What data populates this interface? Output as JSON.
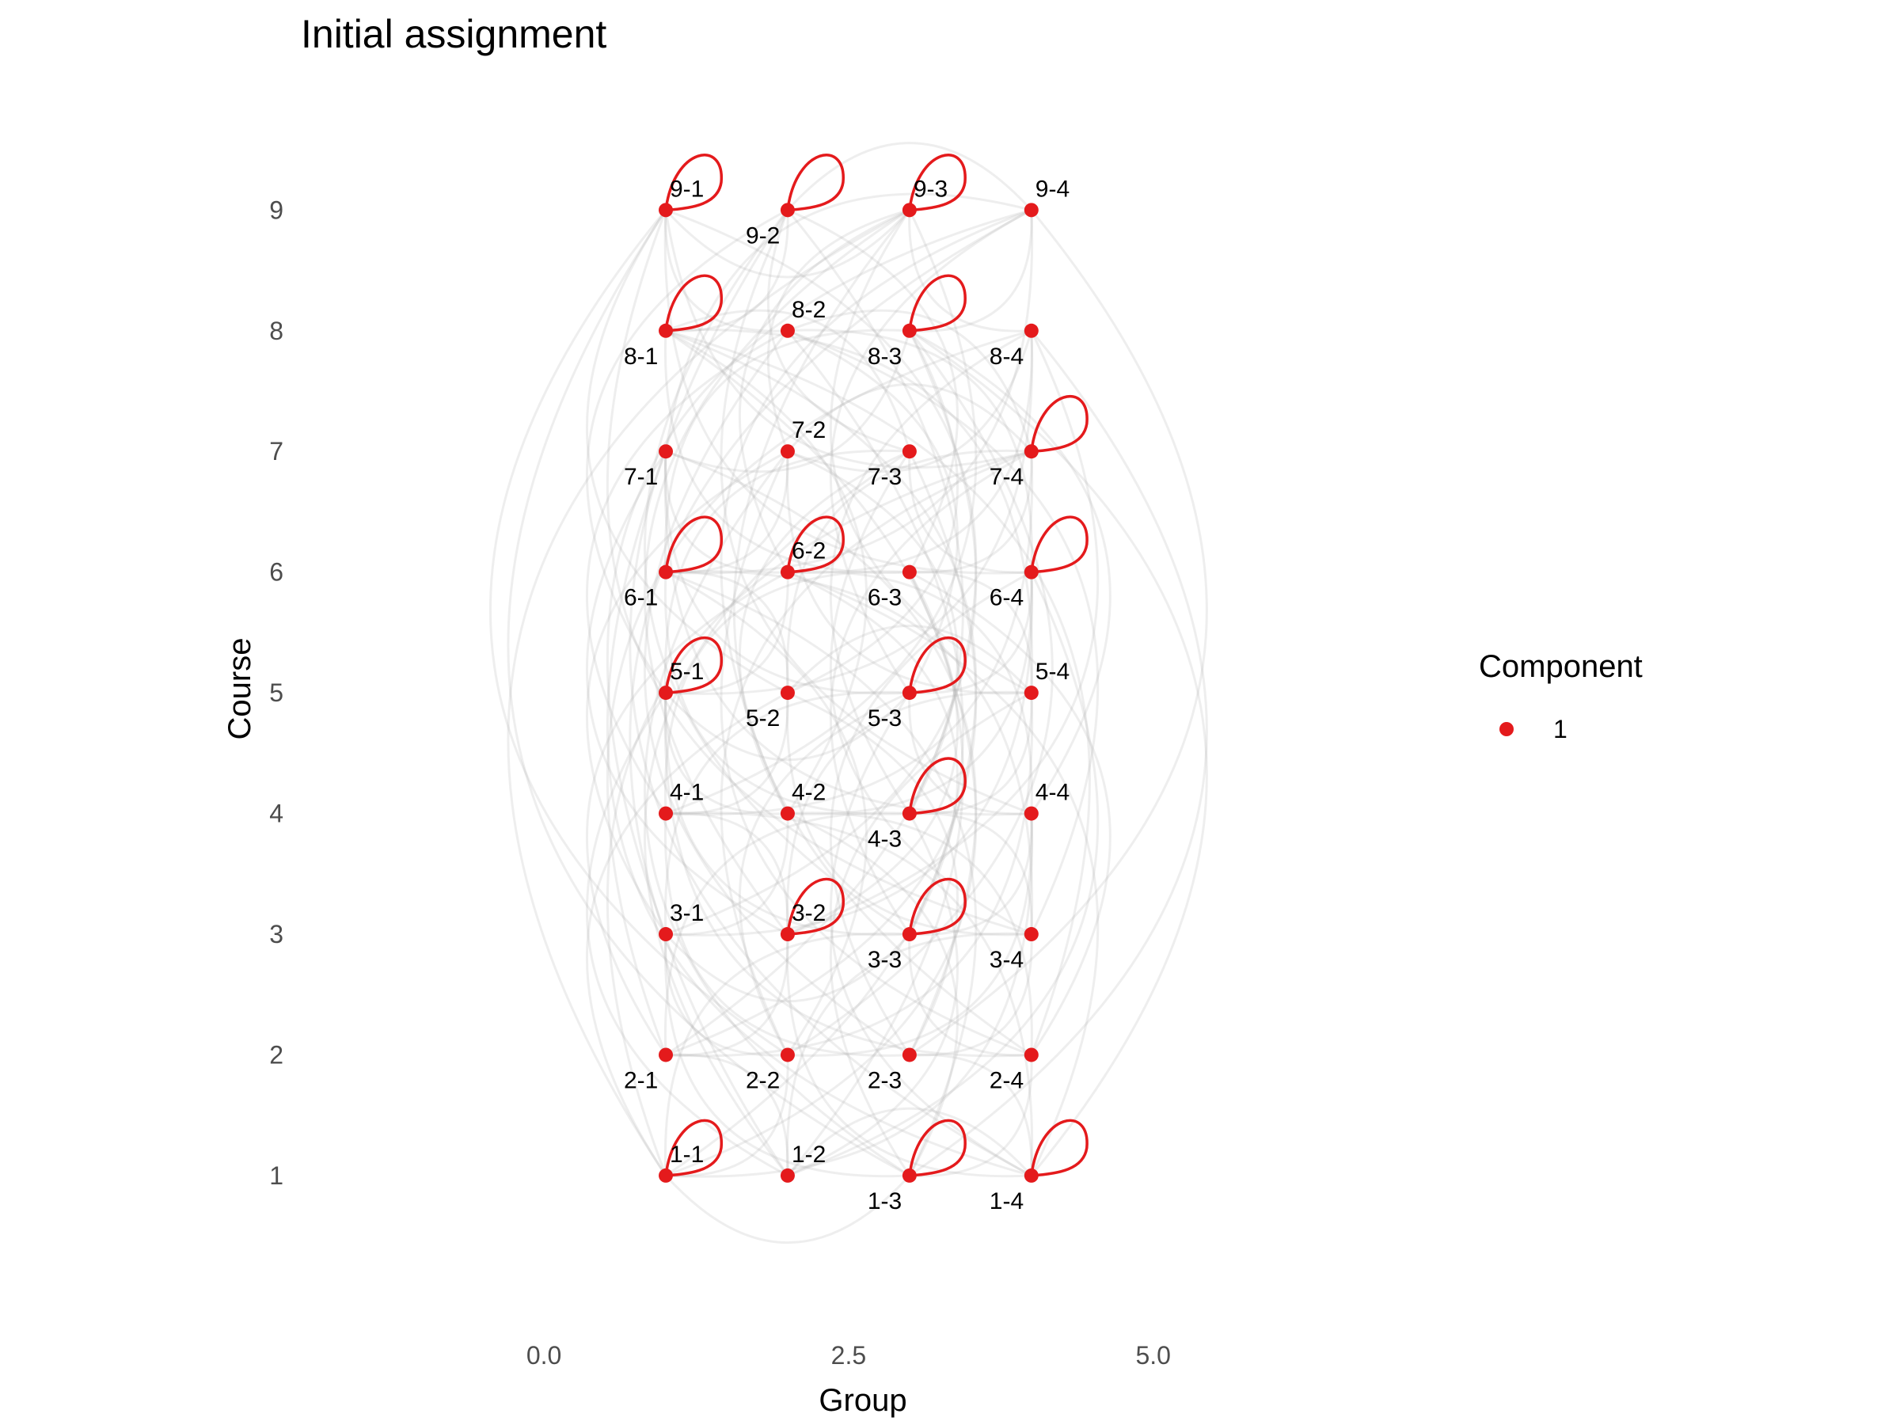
{
  "chart_data": {
    "type": "network",
    "title": "Initial assignment",
    "xlabel": "Group",
    "ylabel": "Course",
    "xlim": [
      -1.8,
      7.1
    ],
    "ylim": [
      -0.05,
      10.15
    ],
    "x_ticks": [
      0.0,
      2.5,
      5.0
    ],
    "x_tick_labels": [
      "0.0",
      "2.5",
      "5.0"
    ],
    "y_ticks": [
      1,
      2,
      3,
      4,
      5,
      6,
      7,
      8,
      9
    ],
    "y_tick_labels": [
      "1",
      "2",
      "3",
      "4",
      "5",
      "6",
      "7",
      "8",
      "9"
    ],
    "legend": {
      "title": "Component",
      "items": [
        {
          "label": "1",
          "color": "#e41a1c"
        }
      ],
      "position": "right"
    },
    "node_color": "#e41a1c",
    "edge_color": "#b0b0b0",
    "nodes": [
      {
        "id": "1-1",
        "group": 1,
        "course": 1,
        "self_loop": true,
        "label_pos": "above"
      },
      {
        "id": "1-2",
        "group": 2,
        "course": 1,
        "self_loop": false,
        "label_pos": "above"
      },
      {
        "id": "1-3",
        "group": 3,
        "course": 1,
        "self_loop": true,
        "label_pos": "below"
      },
      {
        "id": "1-4",
        "group": 4,
        "course": 1,
        "self_loop": true,
        "label_pos": "below"
      },
      {
        "id": "2-1",
        "group": 1,
        "course": 2,
        "self_loop": false,
        "label_pos": "below"
      },
      {
        "id": "2-2",
        "group": 2,
        "course": 2,
        "self_loop": false,
        "label_pos": "below"
      },
      {
        "id": "2-3",
        "group": 3,
        "course": 2,
        "self_loop": false,
        "label_pos": "below"
      },
      {
        "id": "2-4",
        "group": 4,
        "course": 2,
        "self_loop": false,
        "label_pos": "below"
      },
      {
        "id": "3-1",
        "group": 1,
        "course": 3,
        "self_loop": false,
        "label_pos": "above"
      },
      {
        "id": "3-2",
        "group": 2,
        "course": 3,
        "self_loop": true,
        "label_pos": "above"
      },
      {
        "id": "3-3",
        "group": 3,
        "course": 3,
        "self_loop": true,
        "label_pos": "below"
      },
      {
        "id": "3-4",
        "group": 4,
        "course": 3,
        "self_loop": false,
        "label_pos": "below"
      },
      {
        "id": "4-1",
        "group": 1,
        "course": 4,
        "self_loop": false,
        "label_pos": "above"
      },
      {
        "id": "4-2",
        "group": 2,
        "course": 4,
        "self_loop": false,
        "label_pos": "above"
      },
      {
        "id": "4-3",
        "group": 3,
        "course": 4,
        "self_loop": true,
        "label_pos": "below"
      },
      {
        "id": "4-4",
        "group": 4,
        "course": 4,
        "self_loop": false,
        "label_pos": "above"
      },
      {
        "id": "5-1",
        "group": 1,
        "course": 5,
        "self_loop": true,
        "label_pos": "above"
      },
      {
        "id": "5-2",
        "group": 2,
        "course": 5,
        "self_loop": false,
        "label_pos": "below"
      },
      {
        "id": "5-3",
        "group": 3,
        "course": 5,
        "self_loop": true,
        "label_pos": "below"
      },
      {
        "id": "5-4",
        "group": 4,
        "course": 5,
        "self_loop": false,
        "label_pos": "above"
      },
      {
        "id": "6-1",
        "group": 1,
        "course": 6,
        "self_loop": true,
        "label_pos": "below"
      },
      {
        "id": "6-2",
        "group": 2,
        "course": 6,
        "self_loop": true,
        "label_pos": "above"
      },
      {
        "id": "6-3",
        "group": 3,
        "course": 6,
        "self_loop": false,
        "label_pos": "below"
      },
      {
        "id": "6-4",
        "group": 4,
        "course": 6,
        "self_loop": true,
        "label_pos": "below"
      },
      {
        "id": "7-1",
        "group": 1,
        "course": 7,
        "self_loop": false,
        "label_pos": "below"
      },
      {
        "id": "7-2",
        "group": 2,
        "course": 7,
        "self_loop": false,
        "label_pos": "above"
      },
      {
        "id": "7-3",
        "group": 3,
        "course": 7,
        "self_loop": false,
        "label_pos": "below"
      },
      {
        "id": "7-4",
        "group": 4,
        "course": 7,
        "self_loop": true,
        "label_pos": "below"
      },
      {
        "id": "8-1",
        "group": 1,
        "course": 8,
        "self_loop": true,
        "label_pos": "below"
      },
      {
        "id": "8-2",
        "group": 2,
        "course": 8,
        "self_loop": false,
        "label_pos": "above"
      },
      {
        "id": "8-3",
        "group": 3,
        "course": 8,
        "self_loop": true,
        "label_pos": "below"
      },
      {
        "id": "8-4",
        "group": 4,
        "course": 8,
        "self_loop": false,
        "label_pos": "below"
      },
      {
        "id": "9-1",
        "group": 1,
        "course": 9,
        "self_loop": true,
        "label_pos": "above"
      },
      {
        "id": "9-2",
        "group": 2,
        "course": 9,
        "self_loop": true,
        "label_pos": "below"
      },
      {
        "id": "9-3",
        "group": 3,
        "course": 9,
        "self_loop": true,
        "label_pos": "above"
      },
      {
        "id": "9-4",
        "group": 4,
        "course": 9,
        "self_loop": false,
        "label_pos": "above"
      }
    ],
    "edges": [
      [
        "1-1",
        "2-2"
      ],
      [
        "1-1",
        "3-3"
      ],
      [
        "1-1",
        "4-4"
      ],
      [
        "1-1",
        "5-2"
      ],
      [
        "1-1",
        "6-3"
      ],
      [
        "1-1",
        "7-4"
      ],
      [
        "1-1",
        "8-2"
      ],
      [
        "1-1",
        "9-3"
      ],
      [
        "1-2",
        "2-1"
      ],
      [
        "1-2",
        "3-4"
      ],
      [
        "1-2",
        "4-3"
      ],
      [
        "1-2",
        "5-1"
      ],
      [
        "1-2",
        "6-4"
      ],
      [
        "1-2",
        "7-3"
      ],
      [
        "1-2",
        "8-1"
      ],
      [
        "1-2",
        "9-4"
      ],
      [
        "1-3",
        "2-4"
      ],
      [
        "1-3",
        "3-1"
      ],
      [
        "1-3",
        "4-2"
      ],
      [
        "1-3",
        "5-4"
      ],
      [
        "1-3",
        "6-1"
      ],
      [
        "1-3",
        "7-2"
      ],
      [
        "1-3",
        "8-4"
      ],
      [
        "1-3",
        "9-1"
      ],
      [
        "1-4",
        "2-3"
      ],
      [
        "1-4",
        "3-2"
      ],
      [
        "1-4",
        "4-1"
      ],
      [
        "1-4",
        "5-3"
      ],
      [
        "1-4",
        "6-2"
      ],
      [
        "1-4",
        "7-1"
      ],
      [
        "1-4",
        "8-3"
      ],
      [
        "1-4",
        "9-2"
      ],
      [
        "2-1",
        "3-2"
      ],
      [
        "2-1",
        "4-3"
      ],
      [
        "2-1",
        "5-4"
      ],
      [
        "2-1",
        "6-2"
      ],
      [
        "2-1",
        "7-3"
      ],
      [
        "2-1",
        "8-4"
      ],
      [
        "2-1",
        "9-2"
      ],
      [
        "2-2",
        "3-1"
      ],
      [
        "2-2",
        "4-4"
      ],
      [
        "2-2",
        "5-3"
      ],
      [
        "2-2",
        "6-1"
      ],
      [
        "2-2",
        "7-4"
      ],
      [
        "2-2",
        "8-3"
      ],
      [
        "2-2",
        "9-1"
      ],
      [
        "2-3",
        "3-4"
      ],
      [
        "2-3",
        "4-1"
      ],
      [
        "2-3",
        "5-2"
      ],
      [
        "2-3",
        "6-4"
      ],
      [
        "2-3",
        "7-1"
      ],
      [
        "2-3",
        "8-2"
      ],
      [
        "2-3",
        "9-4"
      ],
      [
        "2-4",
        "3-3"
      ],
      [
        "2-4",
        "4-2"
      ],
      [
        "2-4",
        "5-1"
      ],
      [
        "2-4",
        "6-3"
      ],
      [
        "2-4",
        "7-2"
      ],
      [
        "2-4",
        "8-1"
      ],
      [
        "2-4",
        "9-3"
      ],
      [
        "3-1",
        "4-2"
      ],
      [
        "3-1",
        "5-3"
      ],
      [
        "3-1",
        "6-4"
      ],
      [
        "3-1",
        "7-2"
      ],
      [
        "3-1",
        "8-3"
      ],
      [
        "3-1",
        "9-4"
      ],
      [
        "3-2",
        "4-1"
      ],
      [
        "3-2",
        "5-4"
      ],
      [
        "3-2",
        "6-3"
      ],
      [
        "3-2",
        "7-1"
      ],
      [
        "3-2",
        "8-4"
      ],
      [
        "3-2",
        "9-3"
      ],
      [
        "3-3",
        "4-4"
      ],
      [
        "3-3",
        "5-1"
      ],
      [
        "3-3",
        "6-2"
      ],
      [
        "3-3",
        "7-4"
      ],
      [
        "3-3",
        "8-1"
      ],
      [
        "3-3",
        "9-2"
      ],
      [
        "3-4",
        "4-3"
      ],
      [
        "3-4",
        "5-2"
      ],
      [
        "3-4",
        "6-1"
      ],
      [
        "3-4",
        "7-3"
      ],
      [
        "3-4",
        "8-2"
      ],
      [
        "3-4",
        "9-1"
      ],
      [
        "4-1",
        "5-2"
      ],
      [
        "4-1",
        "6-3"
      ],
      [
        "4-1",
        "7-4"
      ],
      [
        "4-1",
        "8-2"
      ],
      [
        "4-1",
        "9-3"
      ],
      [
        "4-2",
        "5-1"
      ],
      [
        "4-2",
        "6-4"
      ],
      [
        "4-2",
        "7-3"
      ],
      [
        "4-2",
        "8-1"
      ],
      [
        "4-2",
        "9-4"
      ],
      [
        "4-3",
        "5-4"
      ],
      [
        "4-3",
        "6-1"
      ],
      [
        "4-3",
        "7-2"
      ],
      [
        "4-3",
        "8-4"
      ],
      [
        "4-3",
        "9-1"
      ],
      [
        "4-4",
        "5-3"
      ],
      [
        "4-4",
        "6-2"
      ],
      [
        "4-4",
        "7-1"
      ],
      [
        "4-4",
        "8-3"
      ],
      [
        "4-4",
        "9-2"
      ],
      [
        "5-1",
        "6-2"
      ],
      [
        "5-1",
        "7-3"
      ],
      [
        "5-1",
        "8-4"
      ],
      [
        "5-1",
        "9-2"
      ],
      [
        "5-2",
        "6-1"
      ],
      [
        "5-2",
        "7-4"
      ],
      [
        "5-2",
        "8-3"
      ],
      [
        "5-2",
        "9-1"
      ],
      [
        "5-3",
        "6-4"
      ],
      [
        "5-3",
        "7-1"
      ],
      [
        "5-3",
        "8-2"
      ],
      [
        "5-3",
        "9-4"
      ],
      [
        "5-4",
        "6-3"
      ],
      [
        "5-4",
        "7-2"
      ],
      [
        "5-4",
        "8-1"
      ],
      [
        "5-4",
        "9-3"
      ],
      [
        "6-1",
        "7-2"
      ],
      [
        "6-1",
        "8-3"
      ],
      [
        "6-1",
        "9-4"
      ],
      [
        "6-2",
        "7-1"
      ],
      [
        "6-2",
        "8-4"
      ],
      [
        "6-2",
        "9-3"
      ],
      [
        "6-3",
        "7-4"
      ],
      [
        "6-3",
        "8-1"
      ],
      [
        "6-3",
        "9-2"
      ],
      [
        "6-4",
        "7-3"
      ],
      [
        "6-4",
        "8-2"
      ],
      [
        "6-4",
        "9-1"
      ],
      [
        "7-1",
        "8-3"
      ],
      [
        "7-1",
        "9-4"
      ],
      [
        "7-2",
        "8-4"
      ],
      [
        "7-2",
        "9-3"
      ],
      [
        "7-3",
        "8-1"
      ],
      [
        "7-3",
        "9-2"
      ],
      [
        "7-4",
        "8-2"
      ],
      [
        "7-4",
        "9-1"
      ],
      [
        "8-1",
        "9-2"
      ],
      [
        "8-2",
        "9-1"
      ],
      [
        "8-3",
        "9-4"
      ],
      [
        "8-4",
        "9-3"
      ],
      [
        "1-1",
        "1-3"
      ],
      [
        "1-2",
        "1-4"
      ],
      [
        "9-1",
        "9-3"
      ],
      [
        "9-2",
        "9-4"
      ],
      [
        "5-1",
        "5-3"
      ],
      [
        "5-2",
        "5-4"
      ],
      [
        "3-1",
        "3-3"
      ],
      [
        "7-2",
        "7-4"
      ]
    ]
  }
}
